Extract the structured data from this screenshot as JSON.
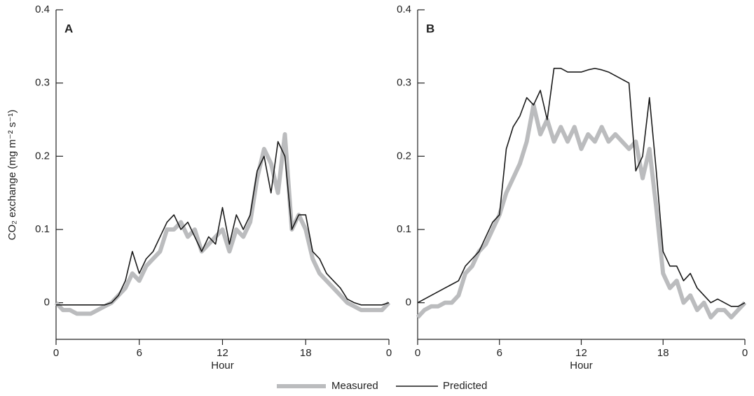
{
  "chart_data": [
    {
      "type": "line",
      "panel_label": "A",
      "xlabel": "Hour",
      "ylabel": "CO₂ exchange (mg m⁻² s⁻¹)",
      "xlim": [
        0,
        24
      ],
      "xticks": [
        0,
        6,
        12,
        18,
        {
          "value": 24,
          "label": "0"
        }
      ],
      "ylim": [
        -0.05,
        0.4
      ],
      "yticks": [
        0,
        0.1,
        0.2,
        0.3,
        0.4
      ],
      "x": [
        0,
        0.5,
        1,
        1.5,
        2,
        2.5,
        3,
        3.5,
        4,
        4.5,
        5,
        5.5,
        6,
        6.5,
        7,
        7.5,
        8,
        8.5,
        9,
        9.5,
        10,
        10.5,
        11,
        11.5,
        12,
        12.5,
        13,
        13.5,
        14,
        14.5,
        15,
        15.5,
        16,
        16.5,
        17,
        17.5,
        18,
        18.5,
        19,
        19.5,
        20,
        20.5,
        21,
        21.5,
        22,
        22.5,
        23,
        23.5,
        24
      ],
      "series": [
        {
          "name": "Measured",
          "color": "#bbbcbe",
          "width": 6,
          "values": [
            0,
            -0.01,
            -0.01,
            -0.015,
            -0.015,
            -0.015,
            -0.01,
            -0.005,
            0,
            0.01,
            0.02,
            0.04,
            0.03,
            0.05,
            0.06,
            0.07,
            0.1,
            0.1,
            0.11,
            0.09,
            0.1,
            0.07,
            0.08,
            0.09,
            0.1,
            0.07,
            0.1,
            0.09,
            0.11,
            0.17,
            0.21,
            0.19,
            0.15,
            0.23,
            0.1,
            0.12,
            0.1,
            0.06,
            0.04,
            0.03,
            0.02,
            0.01,
            0,
            -0.005,
            -0.01,
            -0.01,
            -0.01,
            -0.01,
            0
          ]
        },
        {
          "name": "Predicted",
          "color": "#1a1a1a",
          "width": 1.6,
          "values": [
            -0.003,
            -0.003,
            -0.003,
            -0.003,
            -0.003,
            -0.003,
            -0.003,
            -0.003,
            0,
            0.01,
            0.03,
            0.07,
            0.04,
            0.06,
            0.07,
            0.09,
            0.11,
            0.12,
            0.1,
            0.11,
            0.09,
            0.07,
            0.09,
            0.08,
            0.13,
            0.08,
            0.12,
            0.1,
            0.12,
            0.18,
            0.2,
            0.15,
            0.22,
            0.2,
            0.1,
            0.12,
            0.12,
            0.07,
            0.06,
            0.04,
            0.03,
            0.02,
            0.005,
            0,
            -0.003,
            -0.003,
            -0.003,
            -0.003,
            0
          ]
        }
      ]
    },
    {
      "type": "line",
      "panel_label": "B",
      "xlabel": "Hour",
      "xlim": [
        0,
        24
      ],
      "xticks": [
        0,
        6,
        12,
        18,
        {
          "value": 24,
          "label": "0"
        }
      ],
      "ylim": [
        -0.05,
        0.4
      ],
      "yticks": [
        0,
        0.1,
        0.2,
        0.3,
        0.4
      ],
      "x": [
        0,
        0.5,
        1,
        1.5,
        2,
        2.5,
        3,
        3.5,
        4,
        4.5,
        5,
        5.5,
        6,
        6.5,
        7,
        7.5,
        8,
        8.5,
        9,
        9.5,
        10,
        10.5,
        11,
        11.5,
        12,
        12.5,
        13,
        13.5,
        14,
        14.5,
        15,
        15.5,
        16,
        16.5,
        17,
        17.5,
        18,
        18.5,
        19,
        19.5,
        20,
        20.5,
        21,
        21.5,
        22,
        22.5,
        23,
        23.5,
        24
      ],
      "series": [
        {
          "color": "#bbbcbe",
          "width": 6,
          "values": [
            -0.02,
            -0.01,
            -0.005,
            -0.005,
            0,
            0,
            0.01,
            0.04,
            0.05,
            0.07,
            0.08,
            0.1,
            0.12,
            0.15,
            0.17,
            0.19,
            0.22,
            0.27,
            0.23,
            0.25,
            0.22,
            0.24,
            0.22,
            0.24,
            0.21,
            0.23,
            0.22,
            0.24,
            0.22,
            0.23,
            0.22,
            0.21,
            0.22,
            0.17,
            0.21,
            0.13,
            0.04,
            0.02,
            0.03,
            0,
            0.01,
            -0.01,
            0,
            -0.02,
            -0.01,
            -0.01,
            -0.02,
            -0.01,
            0
          ]
        },
        {
          "color": "#1a1a1a",
          "width": 1.6,
          "values": [
            0,
            0.005,
            0.01,
            0.015,
            0.02,
            0.025,
            0.03,
            0.05,
            0.06,
            0.07,
            0.09,
            0.11,
            0.12,
            0.21,
            0.24,
            0.255,
            0.28,
            0.27,
            0.29,
            0.25,
            0.32,
            0.32,
            0.315,
            0.315,
            0.315,
            0.318,
            0.32,
            0.318,
            0.315,
            0.31,
            0.305,
            0.3,
            0.18,
            0.2,
            0.28,
            0.18,
            0.07,
            0.05,
            0.05,
            0.03,
            0.04,
            0.02,
            0.01,
            0,
            0.005,
            0,
            -0.005,
            -0.005,
            0
          ]
        }
      ]
    }
  ]
}
